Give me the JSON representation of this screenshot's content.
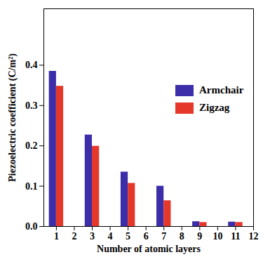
{
  "chart_data": {
    "type": "bar",
    "x_label": "Number of atomic layers",
    "y_label": "Piezoelectric coefficient (C/m²)",
    "x": [
      1,
      3,
      5,
      7,
      9,
      11
    ],
    "series": [
      {
        "name": "Armchair",
        "color": "#3b2ea8",
        "values": [
          0.385,
          0.227,
          0.135,
          0.1,
          0.012,
          0.011
        ]
      },
      {
        "name": "Zigzag",
        "color": "#e5382b",
        "values": [
          0.348,
          0.199,
          0.107,
          0.064,
          0.01,
          0.01
        ]
      }
    ],
    "xlim": [
      0.3,
      12
    ],
    "xticks": [
      1,
      2,
      3,
      4,
      5,
      6,
      7,
      8,
      9,
      10,
      11,
      12
    ],
    "ylim": [
      0,
      0.54
    ],
    "yticks": [
      {
        "value": 0,
        "label": "0.0"
      },
      0.1,
      0.2,
      0.3,
      0.4
    ],
    "legend": "right"
  }
}
